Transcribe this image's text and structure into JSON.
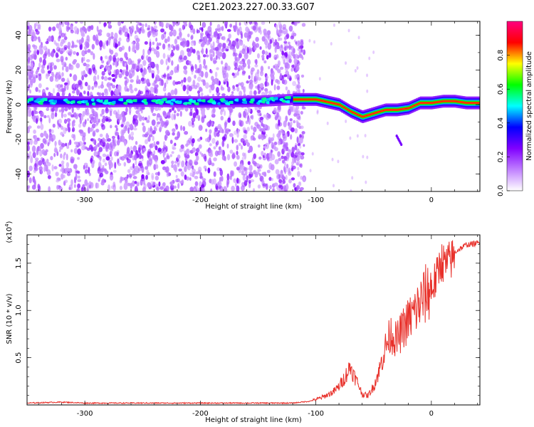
{
  "title": "C2E1.2023.227.00.33.G07",
  "chart_data": [
    {
      "type": "heatmap",
      "xlabel": "Height of straight line (km)",
      "ylabel": "Frequency (Hz)",
      "xlim": [
        -350,
        42
      ],
      "ylim": [
        -50,
        48
      ],
      "x_ticks": [
        -300,
        -200,
        -100,
        0
      ],
      "y_ticks": [
        -40,
        -20,
        0,
        20,
        40
      ],
      "colorbar": {
        "label": "Normalized spectral amplitude",
        "range": [
          0,
          1
        ],
        "ticks": [
          0.0,
          0.2,
          0.4,
          0.6,
          0.8
        ],
        "colors": [
          "#ffffff",
          "#c080ff",
          "#8000ff",
          "#0000ff",
          "#00ffff",
          "#00ff00",
          "#ffff00",
          "#ff0000",
          "#ff0080"
        ]
      },
      "ridge": {
        "x": [
          -350,
          -300,
          -250,
          -200,
          -150,
          -120,
          -100,
          -80,
          -70,
          -60,
          -50,
          -40,
          -30,
          -20,
          -10,
          0,
          10,
          20,
          30,
          42
        ],
        "y": [
          2,
          1.5,
          2,
          1.5,
          2,
          3,
          3,
          0,
          -4,
          -7,
          -5,
          -3,
          -3,
          -2,
          1,
          1,
          2,
          2,
          1,
          1
        ]
      },
      "noise_region_end_km": -120,
      "grid": false
    },
    {
      "type": "line",
      "xlabel": "Height of straight line (km)",
      "ylabel": "SNR (10 * v/v)",
      "y_multiplier": "(x10",
      "y_multiplier_exp": "4",
      "y_multiplier_close": ")",
      "xlim": [
        -350,
        42
      ],
      "ylim": [
        0,
        1.8
      ],
      "x_ticks": [
        -300,
        -200,
        -100,
        0
      ],
      "y_ticks": [
        0.5,
        1.0,
        1.5
      ],
      "y_tick_labels": [
        "0.5",
        "1.0",
        "1.5"
      ],
      "color": "#e8302a",
      "series": [
        {
          "x": [
            -350,
            -320,
            -300,
            -250,
            -200,
            -150,
            -120,
            -105,
            -95,
            -85,
            -80,
            -75,
            -70,
            -67,
            -63,
            -60,
            -55,
            -50,
            -45,
            -40,
            -35,
            -30,
            -25,
            -20,
            -15,
            -10,
            -5,
            0,
            5,
            8,
            12,
            20,
            30,
            42
          ],
          "y": [
            0.02,
            0.03,
            0.02,
            0.02,
            0.02,
            0.02,
            0.02,
            0.04,
            0.08,
            0.14,
            0.2,
            0.3,
            0.42,
            0.32,
            0.22,
            0.12,
            0.1,
            0.2,
            0.38,
            0.62,
            0.78,
            0.7,
            0.82,
            0.92,
            1.0,
            1.1,
            1.2,
            1.28,
            1.4,
            1.58,
            1.52,
            1.62,
            1.7,
            1.72
          ]
        }
      ],
      "grid": false
    }
  ]
}
